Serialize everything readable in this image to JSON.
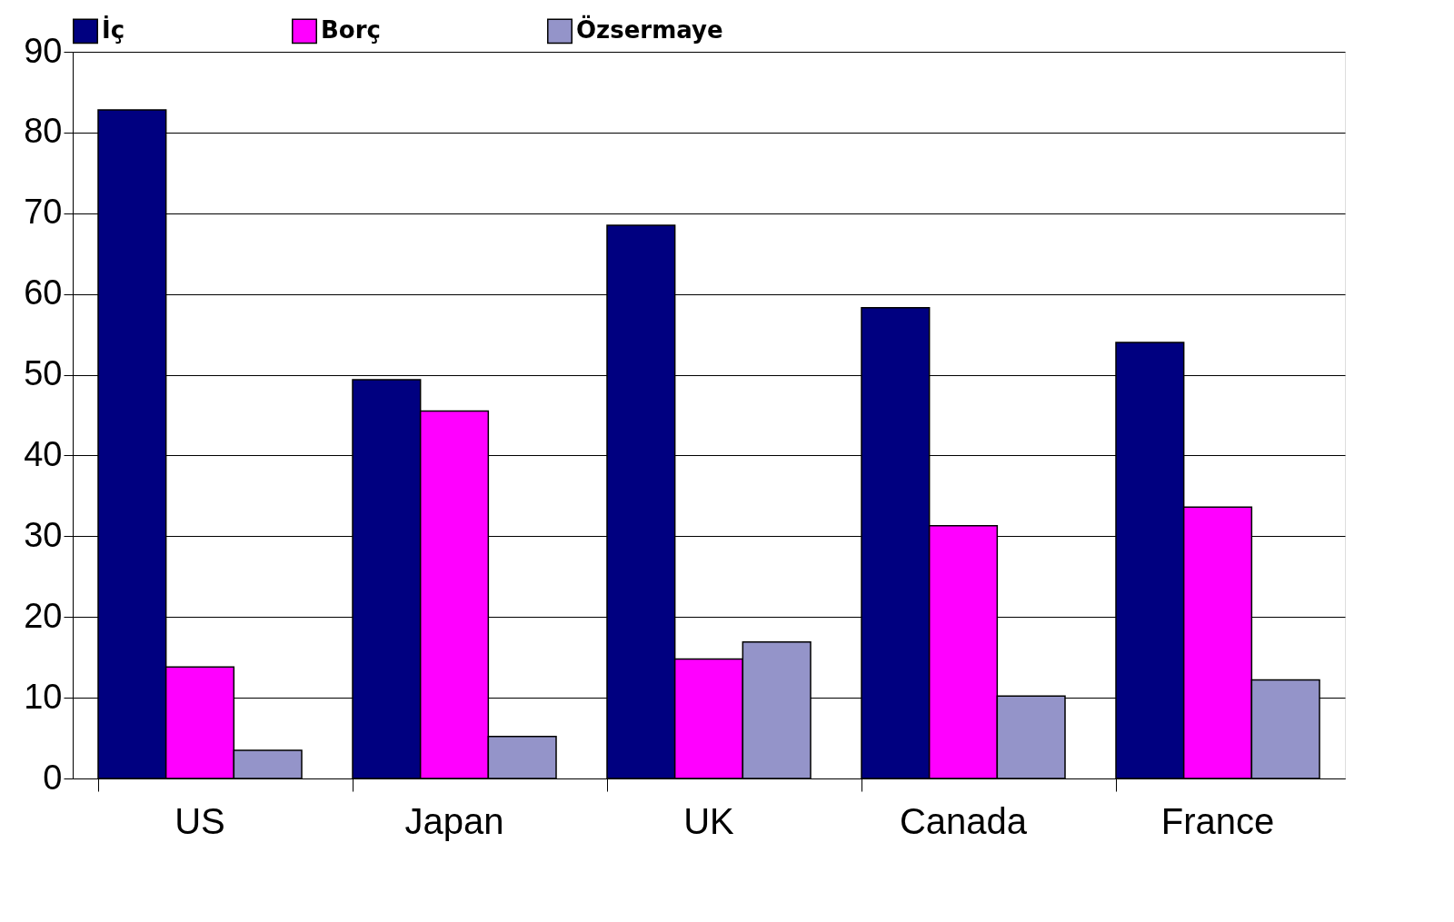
{
  "chart_data": {
    "type": "bar",
    "categories": [
      "US",
      "Japan",
      "UK",
      "Canada",
      "France"
    ],
    "series": [
      {
        "name": "İç",
        "color": "#000080",
        "values": [
          82.8,
          49.4,
          68.5,
          58.3,
          54.0
        ]
      },
      {
        "name": "Borç",
        "color": "#ff00ff",
        "values": [
          13.8,
          45.5,
          14.8,
          31.3,
          33.6
        ]
      },
      {
        "name": "Özsermaye",
        "color": "#9494c9",
        "values": [
          3.5,
          5.2,
          16.9,
          10.2,
          12.2
        ]
      }
    ],
    "ylim": [
      0,
      90
    ],
    "yticks": [
      0,
      10,
      20,
      30,
      40,
      50,
      60,
      70,
      80,
      90
    ],
    "grid": "y",
    "legend": "top"
  }
}
